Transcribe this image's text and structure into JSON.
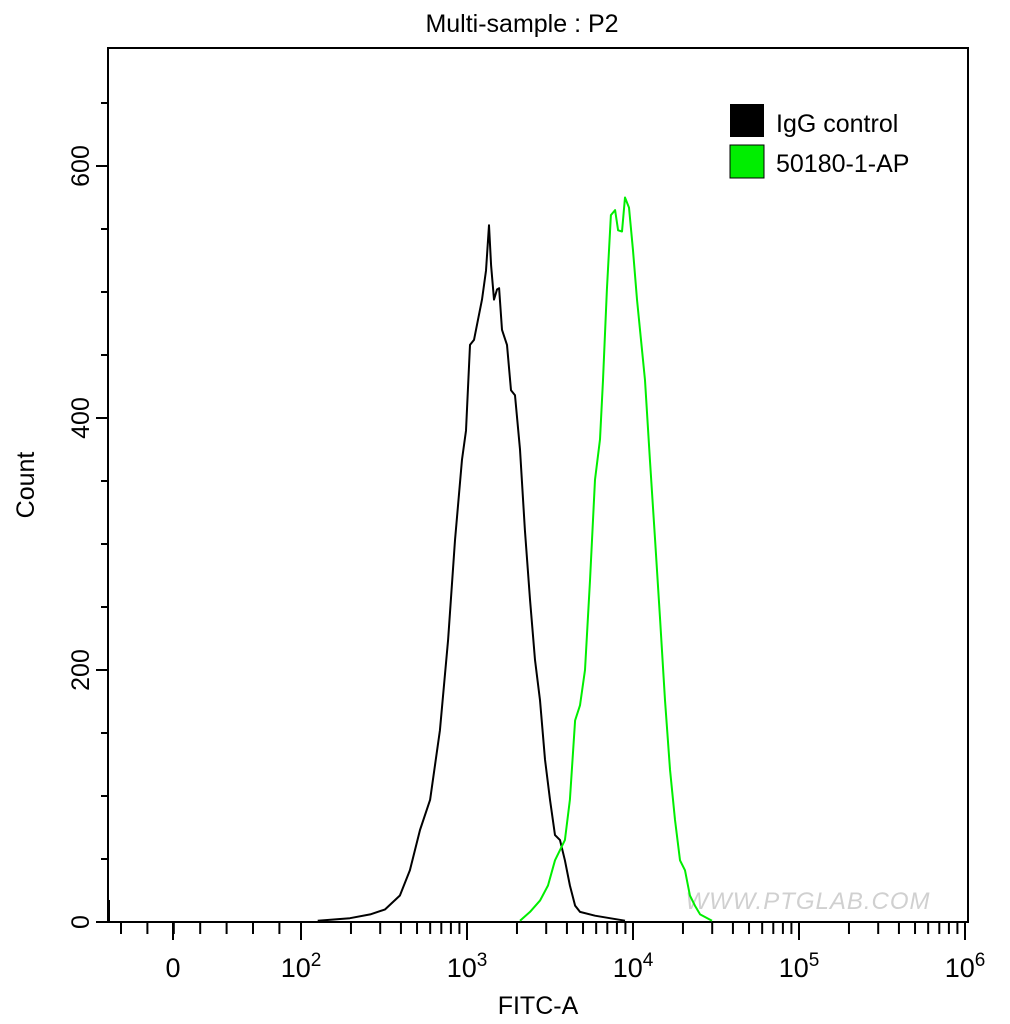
{
  "chart_data": {
    "type": "line",
    "title": "Multi-sample : P2",
    "xlabel": "FITC-A",
    "ylabel": "Count",
    "x_scale": "biexponential",
    "xlim": [
      -300,
      1000000
    ],
    "ylim": [
      0,
      694
    ],
    "grid": false,
    "legend_position": "top-right",
    "x_ticks": [
      {
        "value": 0,
        "base": "0",
        "exp": ""
      },
      {
        "value": 100,
        "base": "10",
        "exp": "2"
      },
      {
        "value": 1000,
        "base": "10",
        "exp": "3"
      },
      {
        "value": 10000,
        "base": "10",
        "exp": "4"
      },
      {
        "value": 100000,
        "base": "10",
        "exp": "5"
      },
      {
        "value": 1000000,
        "base": "10",
        "exp": "6"
      }
    ],
    "y_ticks": [
      0,
      200,
      400,
      600
    ],
    "series": [
      {
        "name": "IgG control",
        "color": "#000000",
        "x": [
          126,
          197,
          261,
          321,
          394,
          453,
          521,
          599,
          687,
          769,
          847,
          933,
          986,
          1042,
          1102,
          1165,
          1231,
          1301,
          1357,
          1396,
          1455,
          1517,
          1560,
          1626,
          1742,
          1842,
          1946,
          2085,
          2234,
          2397,
          2569,
          2754,
          2951,
          3162,
          3388,
          3631,
          3890,
          4169,
          4477,
          4797,
          5902,
          7261,
          8954
        ],
        "y": [
          1,
          3,
          6,
          10,
          21,
          41,
          73,
          97,
          152,
          224,
          303,
          367,
          390,
          458,
          462,
          478,
          494,
          517,
          553,
          521,
          494,
          502,
          503,
          470,
          458,
          422,
          418,
          375,
          311,
          256,
          208,
          176,
          129,
          97,
          69,
          65,
          49,
          29,
          13,
          8,
          5,
          3,
          1
        ]
      },
      {
        "name": "50180-1-AP",
        "color": "#00ee00",
        "x": [
          2085,
          2397,
          2754,
          3076,
          3388,
          3890,
          4169,
          4477,
          4797,
          5140,
          5508,
          5902,
          6324,
          6592,
          6966,
          7362,
          7798,
          8128,
          8590,
          8954,
          9462,
          10000,
          10568,
          11169,
          11803,
          12647,
          13583,
          14555,
          15597,
          16711,
          17906,
          19187,
          20559,
          22029,
          23605,
          25351,
          29923
        ],
        "y": [
          1,
          8,
          17,
          29,
          49,
          65,
          97,
          160,
          172,
          200,
          271,
          351,
          383,
          430,
          502,
          561,
          565,
          549,
          548,
          575,
          567,
          533,
          494,
          462,
          430,
          367,
          303,
          240,
          176,
          121,
          81,
          49,
          41,
          21,
          13,
          6,
          1
        ]
      }
    ],
    "watermark": "WWW.PTGLAB.COM"
  }
}
